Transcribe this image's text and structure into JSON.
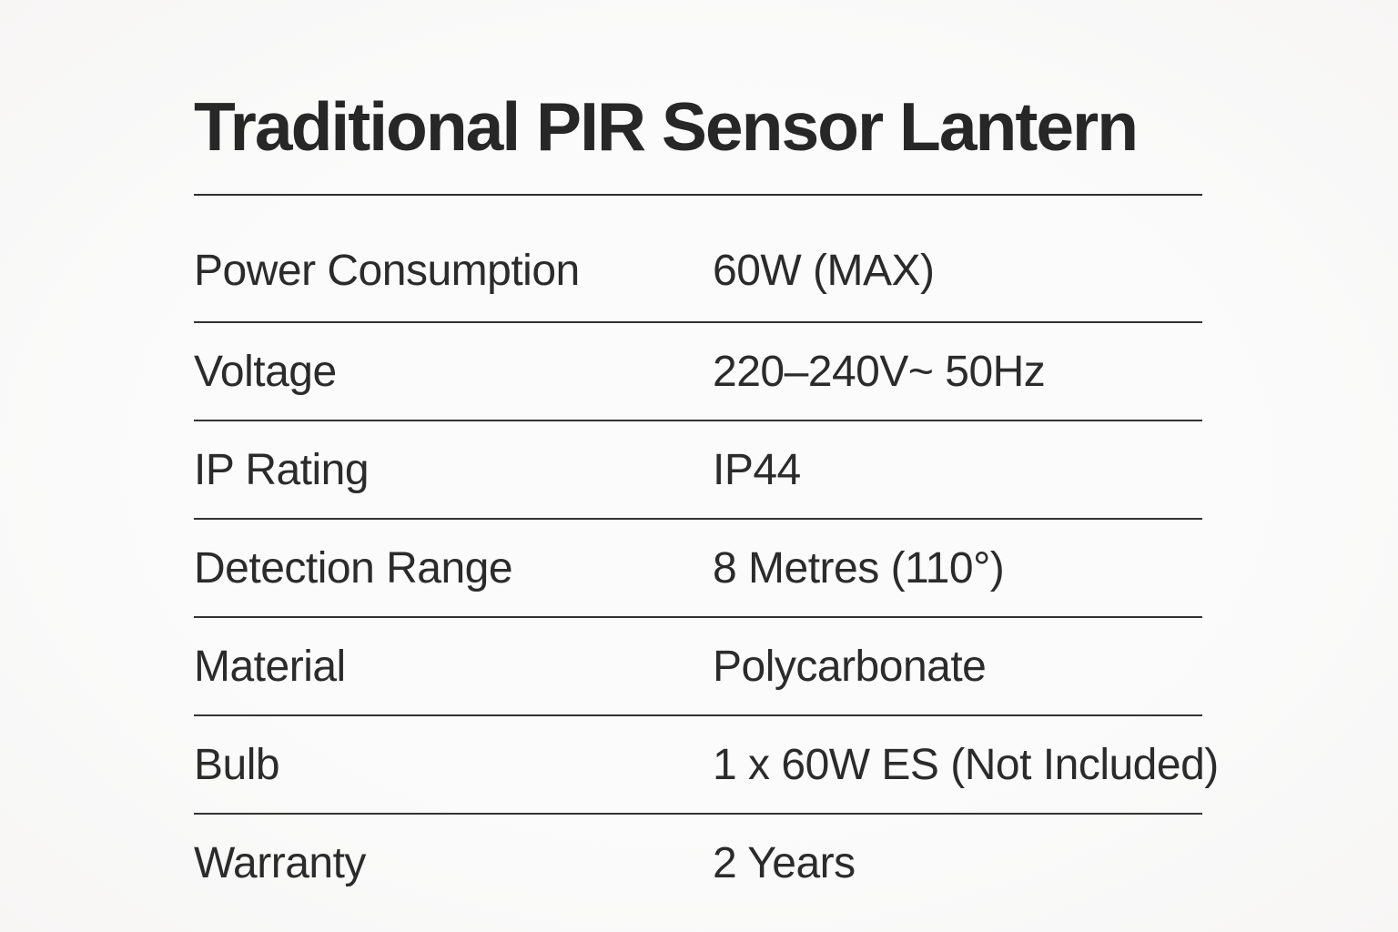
{
  "product": {
    "title": "Traditional PIR Sensor Lantern",
    "specs": [
      {
        "label": "Power Consumption",
        "value": "60W (MAX)"
      },
      {
        "label": "Voltage",
        "value": "220–240V~ 50Hz"
      },
      {
        "label": "IP Rating",
        "value": "IP44"
      },
      {
        "label": "Detection Range",
        "value": "8 Metres (110°)"
      },
      {
        "label": "Material",
        "value": "Polycarbonate"
      },
      {
        "label": "Bulb",
        "value": "1 x 60W ES (Not Included)"
      },
      {
        "label": "Warranty",
        "value": "2 Years"
      }
    ]
  },
  "colors": {
    "background": "#fafafa",
    "text": "#2b2b2b",
    "divider": "#323232"
  }
}
